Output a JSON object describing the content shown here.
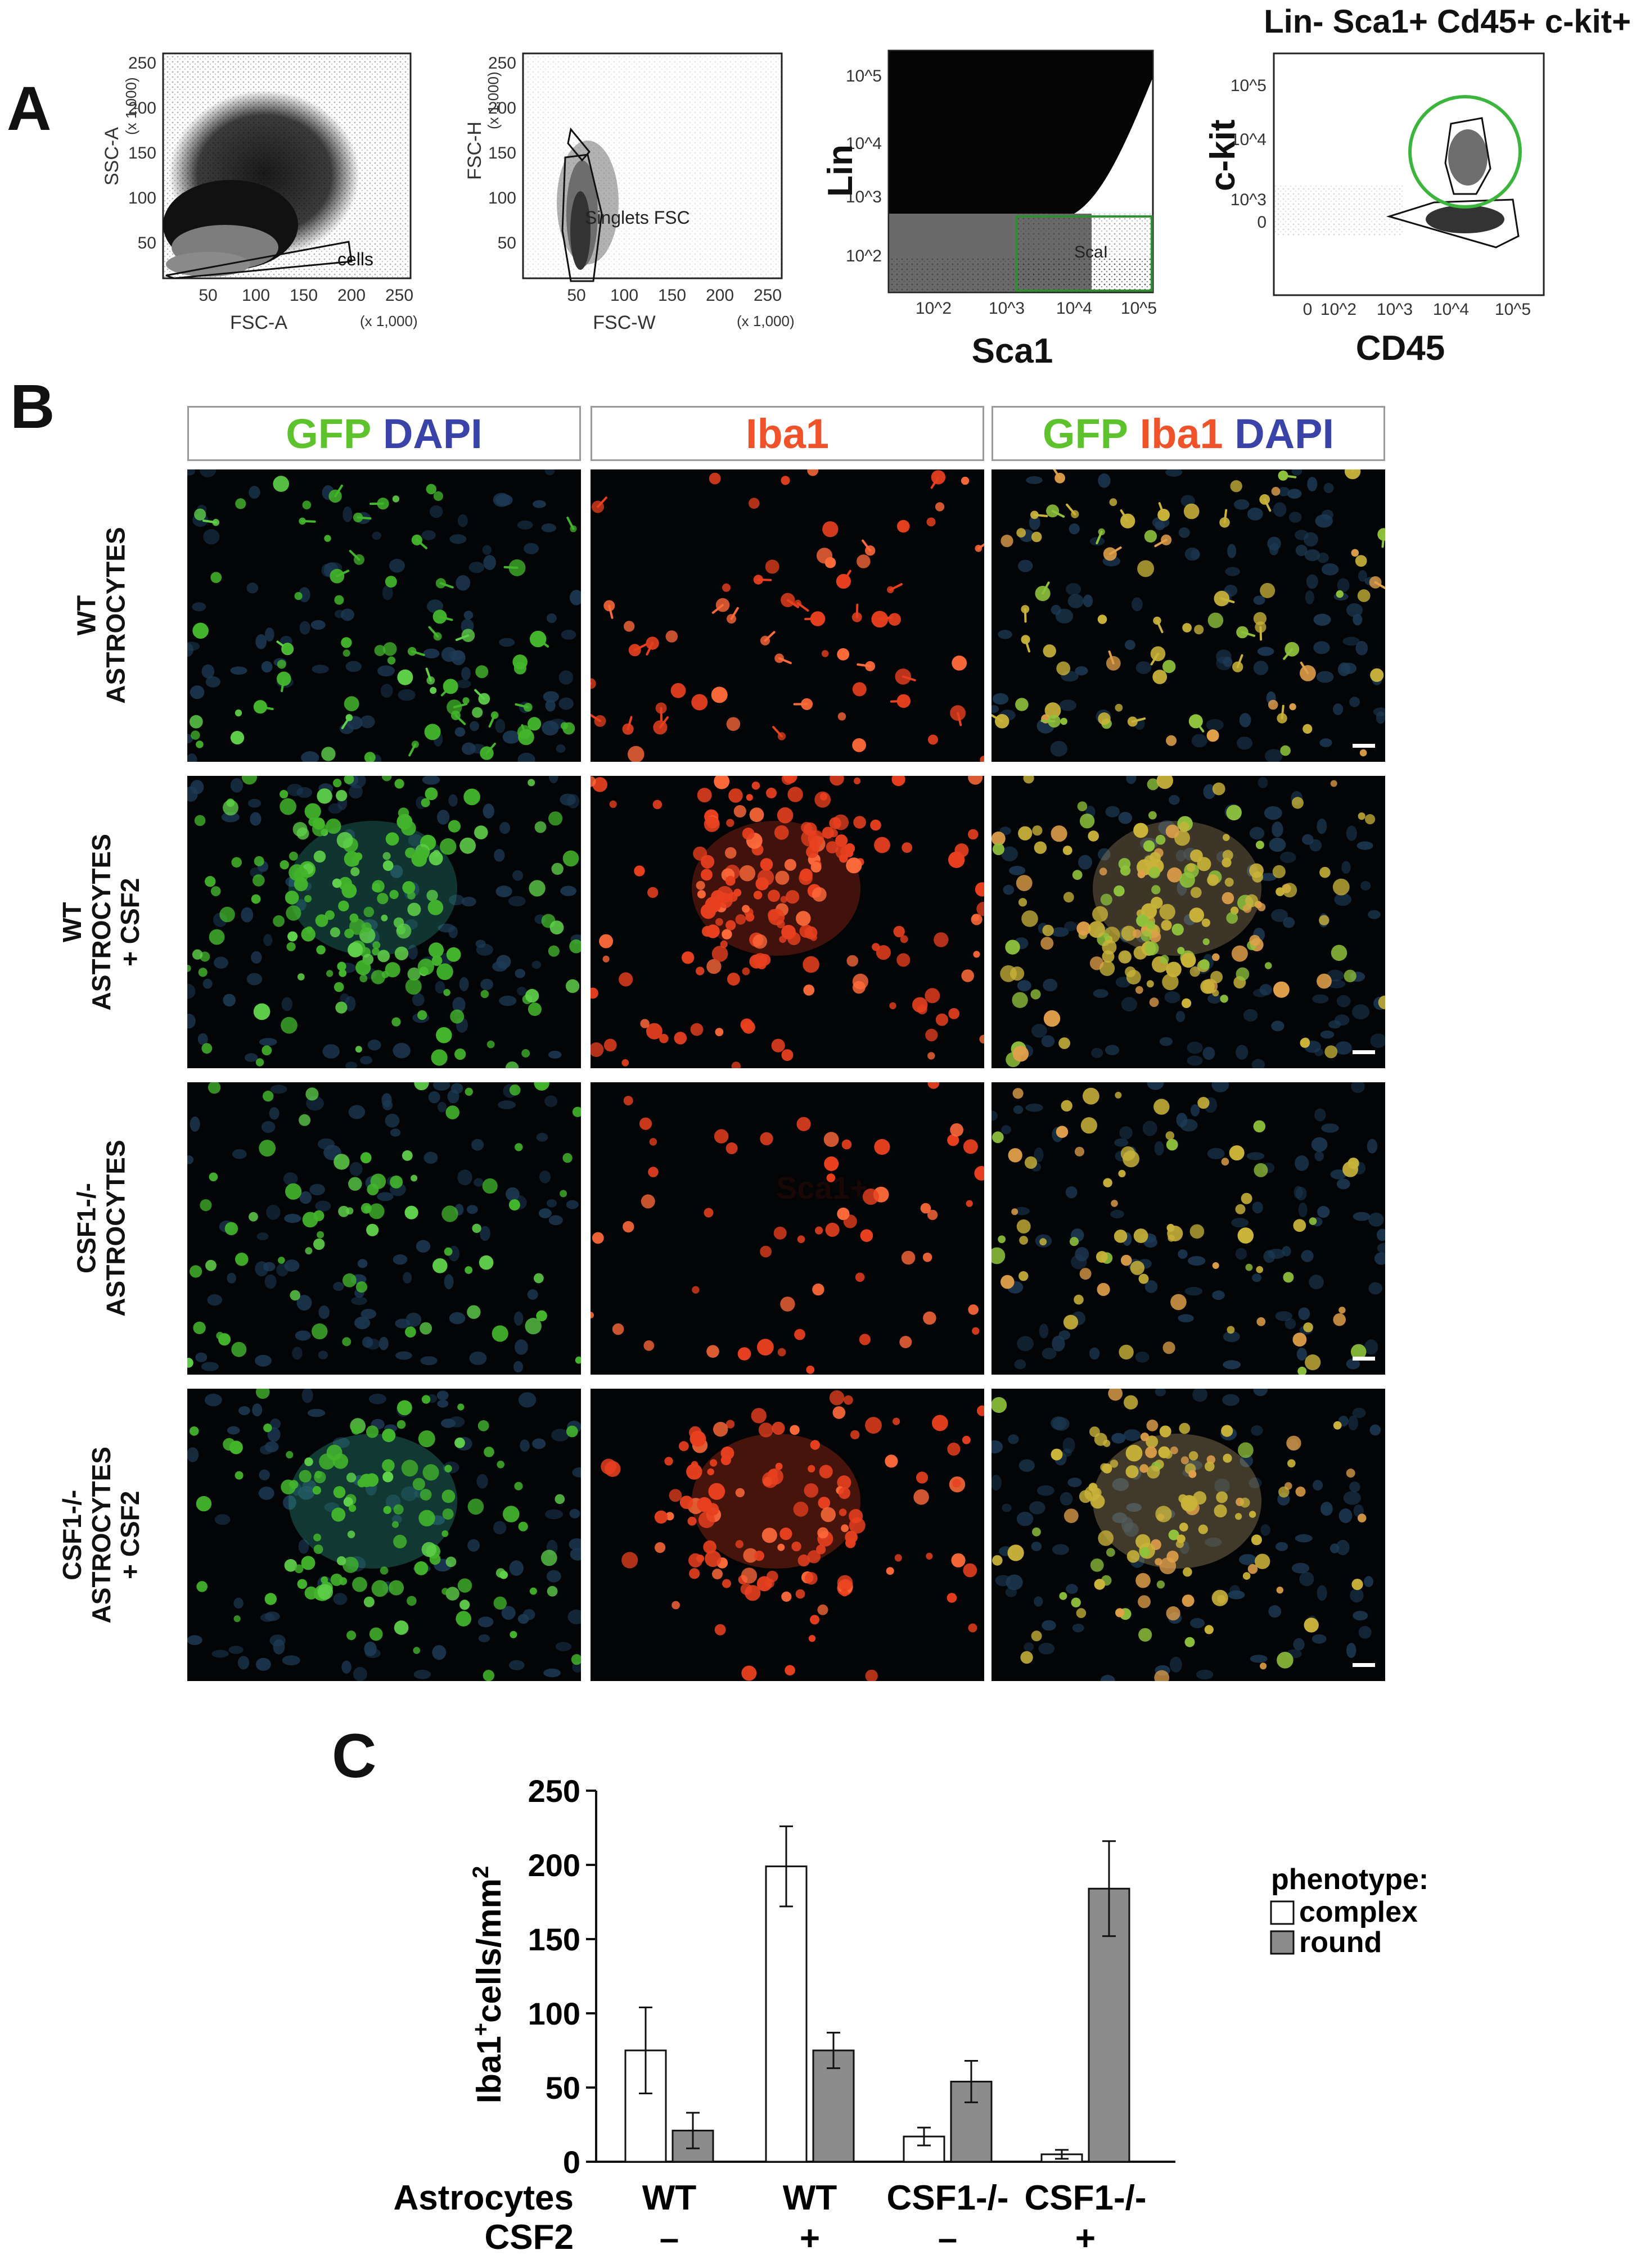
{
  "panel_a": {
    "letter": "A",
    "plot1": {
      "y_label": "SSC-A",
      "y_unit": "(x 1,000)",
      "x_label": "FSC-A",
      "x_unit": "(x 1,000)",
      "gate": "cells",
      "y_ticks": [
        "250",
        "200",
        "150",
        "100",
        "50"
      ],
      "x_ticks": [
        "50",
        "100",
        "150",
        "200",
        "250"
      ]
    },
    "plot2": {
      "y_label": "FSC-H",
      "y_unit": "(x 1,000)",
      "x_label": "FSC-W",
      "x_unit": "(x 1,000)",
      "gate": "Singlets FSC",
      "y_ticks": [
        "250",
        "200",
        "150",
        "100",
        "50"
      ],
      "x_ticks": [
        "50",
        "100",
        "150",
        "200",
        "250"
      ]
    },
    "plot3": {
      "y_label": "Lin",
      "x_label": "Sca1",
      "gate": "ScaI",
      "y_ticks": [
        "10^5",
        "10^4",
        "10^3",
        "10^2"
      ],
      "x_ticks": [
        "10^2",
        "10^3",
        "10^4",
        "10^5"
      ]
    },
    "plot4": {
      "title": "Lin- Sca1+ Cd45+ c-kit+",
      "y_label": "c-kit",
      "x_label": "CD45",
      "y_ticks": [
        "10^5",
        "10^4",
        "10^3",
        "0"
      ],
      "x_ticks": [
        "0",
        "10^2",
        "10^3",
        "10^4",
        "10^5"
      ]
    }
  },
  "panel_b": {
    "letter": "B",
    "col_headers": {
      "c1": {
        "w1": "GFP",
        "w2": "DAPI"
      },
      "c2": {
        "w1": "Iba1"
      },
      "c3": {
        "w1": "GFP",
        "w2": "Iba1",
        "w3": "DAPI"
      }
    },
    "rows": [
      {
        "line1": "WT",
        "line2": "ASTROCYTES",
        "line3": ""
      },
      {
        "line1": "WT",
        "line2": "ASTROCYTES",
        "line3": "+ CSF2"
      },
      {
        "line1": "CSF1-/-",
        "line2": "ASTROCYTES",
        "line3": ""
      },
      {
        "line1": "CSF1-/-",
        "line2": "ASTROCYTES",
        "line3": "+ CSF2"
      }
    ],
    "watermark": "Sca1+",
    "colors": {
      "gfp": "#5ec22c",
      "dapi": "#3a43a8",
      "iba1": "#f0532a"
    }
  },
  "panel_c": {
    "letter": "C",
    "legend_title": "phenotype:",
    "x_row_labels": {
      "astro": "Astrocytes",
      "csf2": "CSF2"
    },
    "chart_data": {
      "type": "bar",
      "title": "",
      "ylabel": "Iba1+cells/mm2",
      "ylim": [
        0,
        250
      ],
      "yticks": [
        "0",
        "50",
        "100",
        "150",
        "200",
        "250"
      ],
      "categories": [
        "WT",
        "WT",
        "CSF1-/-",
        "CSF1-/-"
      ],
      "csf2": [
        "–",
        "+",
        "–",
        "+"
      ],
      "series": [
        {
          "name": "complex",
          "color": "#ffffff",
          "values": [
            75,
            199,
            17,
            5
          ],
          "errors": [
            29,
            27,
            6,
            3
          ]
        },
        {
          "name": "round",
          "color": "#8c8c8c",
          "values": [
            21,
            75,
            54,
            184
          ],
          "errors": [
            12,
            12,
            14,
            32
          ]
        }
      ]
    }
  }
}
